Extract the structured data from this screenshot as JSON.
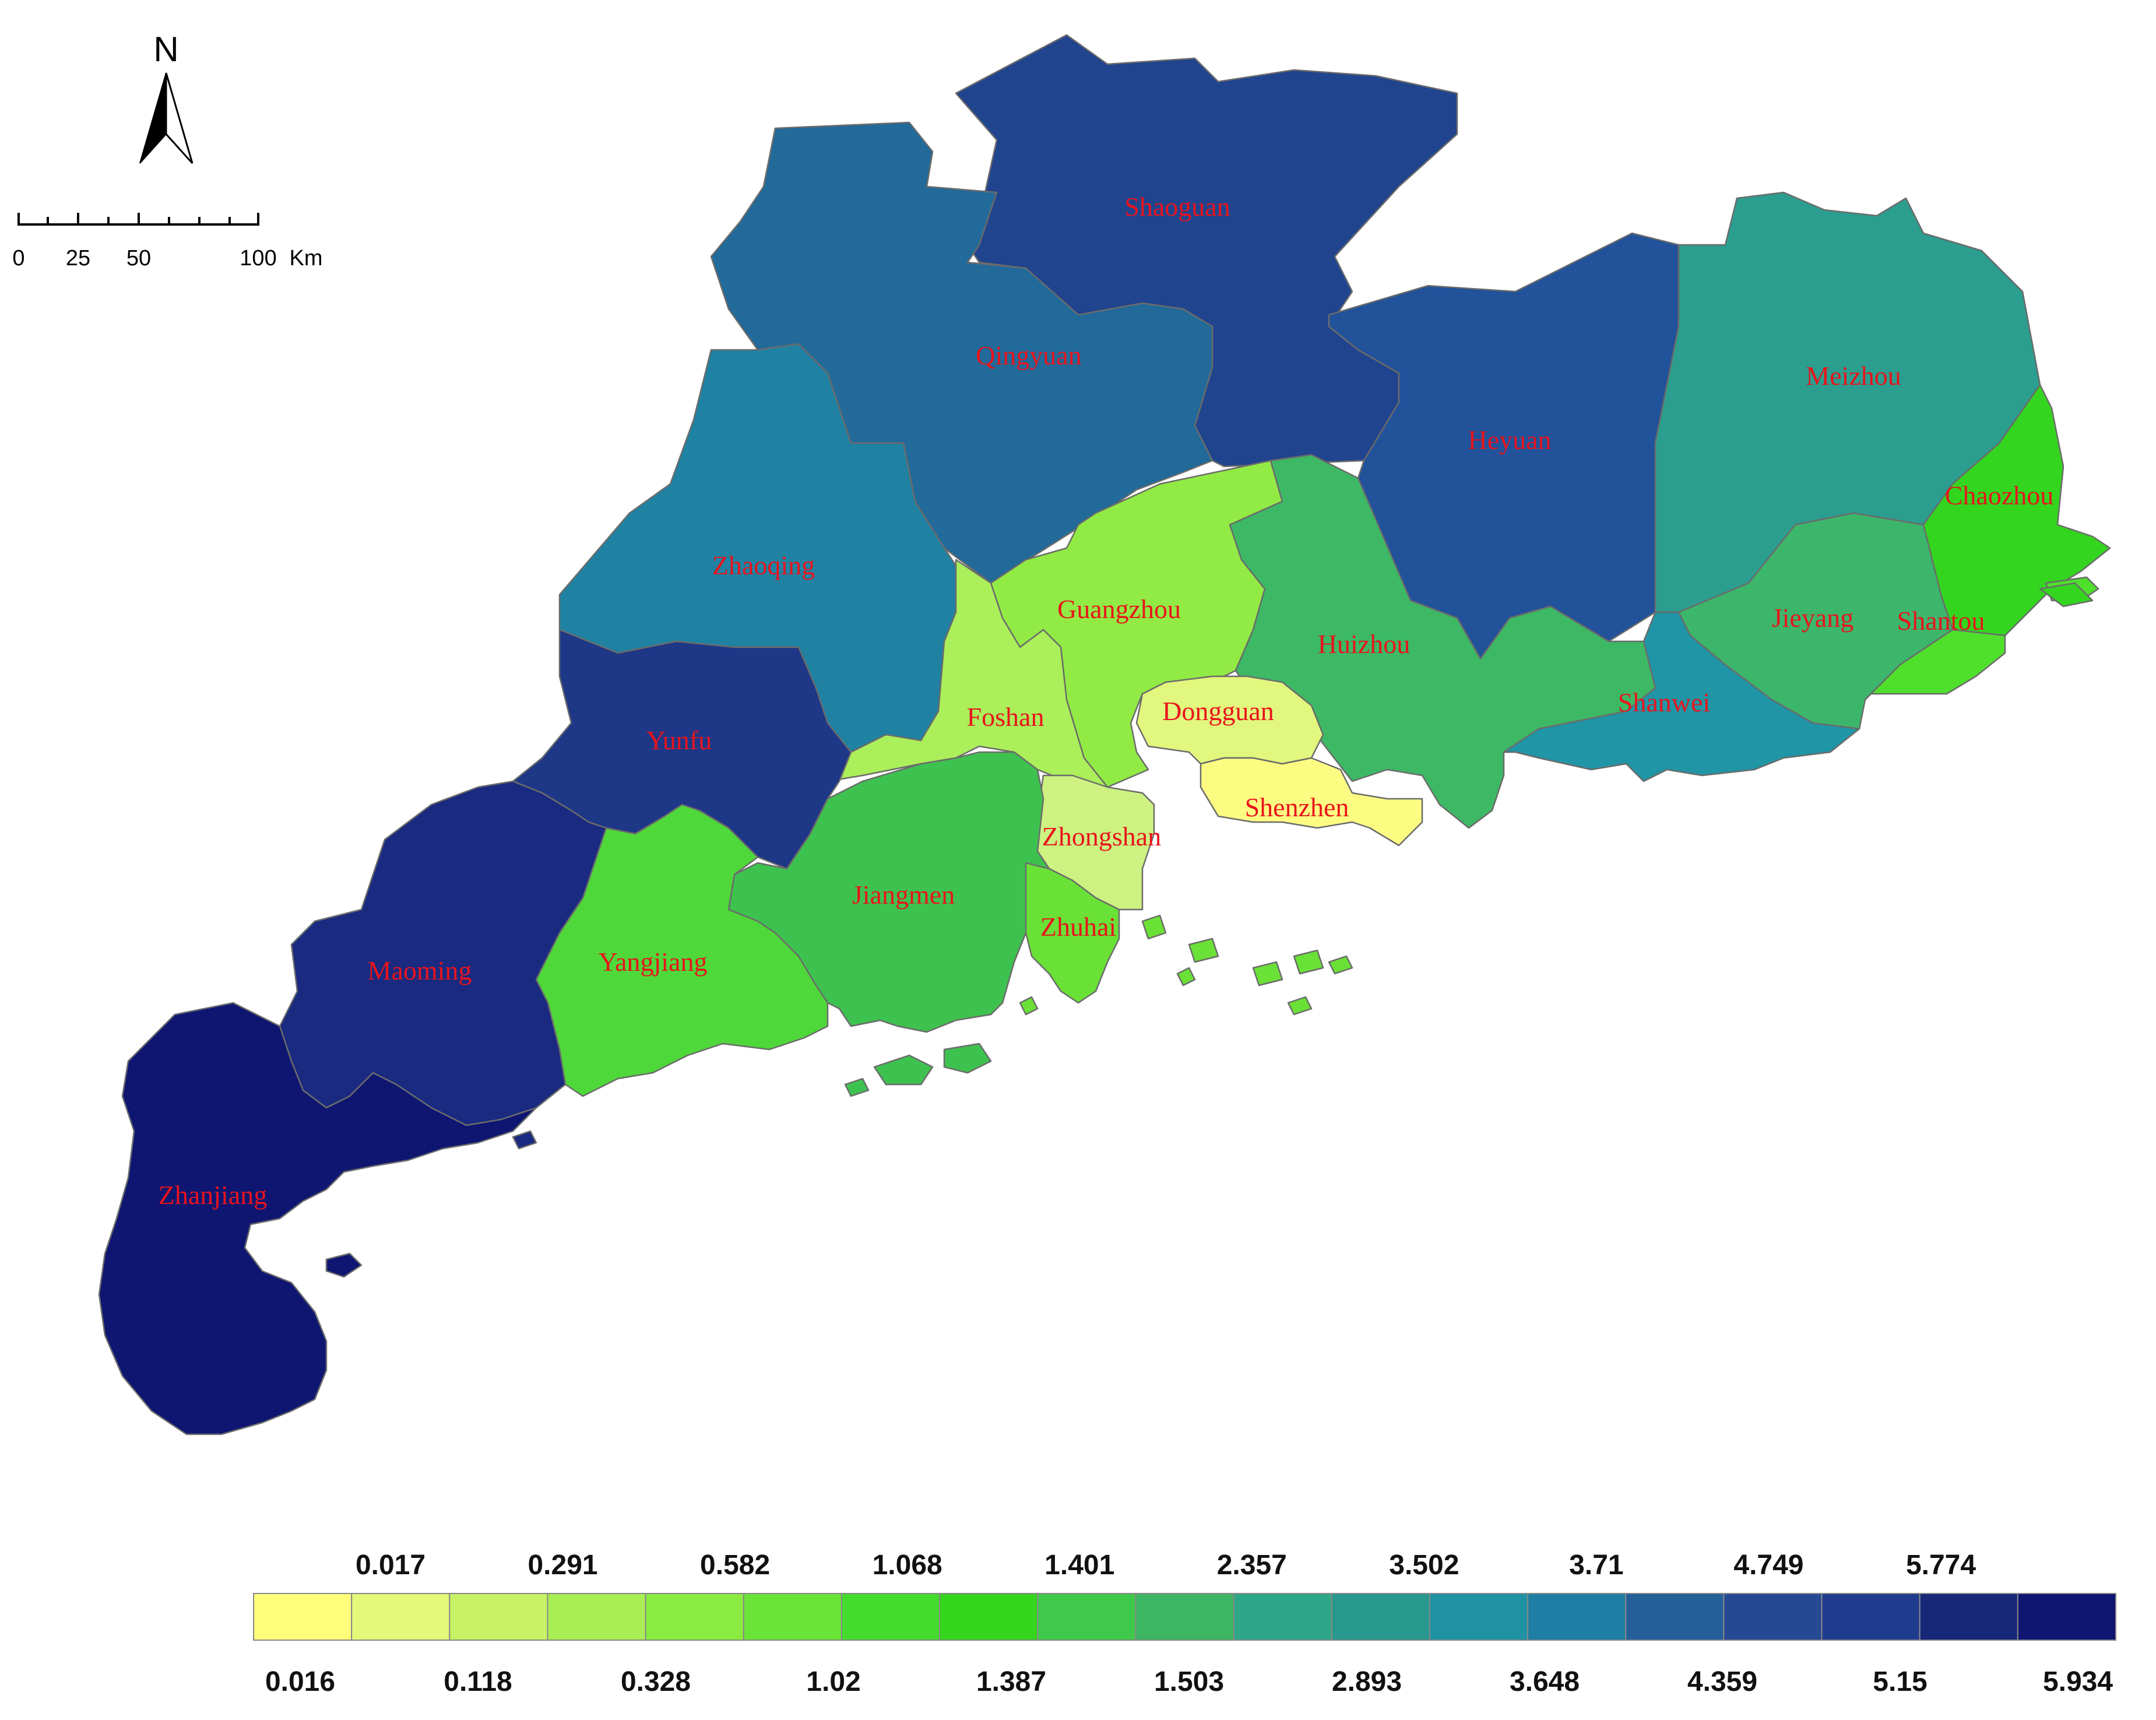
{
  "north_arrow": {
    "letter": "N"
  },
  "scale_bar": {
    "ticks": [
      "0",
      "25",
      "50",
      "100"
    ],
    "unit": "Km"
  },
  "legend": {
    "colors": [
      "#fefe7a",
      "#e4f879",
      "#c8f266",
      "#a9ee54",
      "#8aeb40",
      "#6ae436",
      "#43dc2c",
      "#35d51d",
      "#3ec94b",
      "#3cb662",
      "#2ea688",
      "#27988e",
      "#1f92a4",
      "#1f7ea3",
      "#245f9a",
      "#264993",
      "#1f3b8e",
      "#172878",
      "#0f1672"
    ],
    "top_labels": [
      "0.017",
      "0.291",
      "0.582",
      "1.068",
      "1.401",
      "2.357",
      "3.502",
      "3.71",
      "4.749",
      "5.774"
    ],
    "bottom_labels": [
      "0.016",
      "0.118",
      "0.328",
      "1.02",
      "1.387",
      "1.503",
      "2.893",
      "3.648",
      "4.359",
      "5.15",
      "5.934"
    ]
  },
  "regions": [
    {
      "id": "shaoguan",
      "name": "Shaoguan",
      "color": "#20448e"
    },
    {
      "id": "qingyuan",
      "name": "Qingyuan",
      "color": "#216a9a"
    },
    {
      "id": "heyuan",
      "name": "Heyuan",
      "color": "#21529a"
    },
    {
      "id": "meizhou",
      "name": "Meizhou",
      "color": "#2b9e8f"
    },
    {
      "id": "chaozhou",
      "name": "Chaozhou",
      "color": "#33d51f"
    },
    {
      "id": "zhaoqing",
      "name": "Zhaoqing",
      "color": "#1f82a3"
    },
    {
      "id": "guangzhou",
      "name": "Guangzhou",
      "color": "#92eb44"
    },
    {
      "id": "huizhou",
      "name": "Huizhou",
      "color": "#3db865"
    },
    {
      "id": "jieyang",
      "name": "Jieyang",
      "color": "#3cb66b"
    },
    {
      "id": "shantou",
      "name": "Shantou",
      "color": "#4fe02c"
    },
    {
      "id": "shanwei",
      "name": "Shanwei",
      "color": "#1f95a5"
    },
    {
      "id": "foshan",
      "name": "Foshan",
      "color": "#abef5a"
    },
    {
      "id": "dongguan",
      "name": "Dongguan",
      "color": "#e2f77d"
    },
    {
      "id": "shenzhen",
      "name": "Shenzhen",
      "color": "#fdfc82"
    },
    {
      "id": "yunfu",
      "name": "Yunfu",
      "color": "#1e3787"
    },
    {
      "id": "zhongshan",
      "name": "Zhongshan",
      "color": "#cdf282"
    },
    {
      "id": "jiangmen",
      "name": "Jiangmen",
      "color": "#3ec24f"
    },
    {
      "id": "zhuhai",
      "name": "Zhuhai",
      "color": "#6ae136"
    },
    {
      "id": "yangjiang",
      "name": "Yangjiang",
      "color": "#4fd83a"
    },
    {
      "id": "maoming",
      "name": "Maoming",
      "color": "#192a80"
    },
    {
      "id": "zhanjiang",
      "name": "Zhanjiang",
      "color": "#0e1672"
    }
  ]
}
